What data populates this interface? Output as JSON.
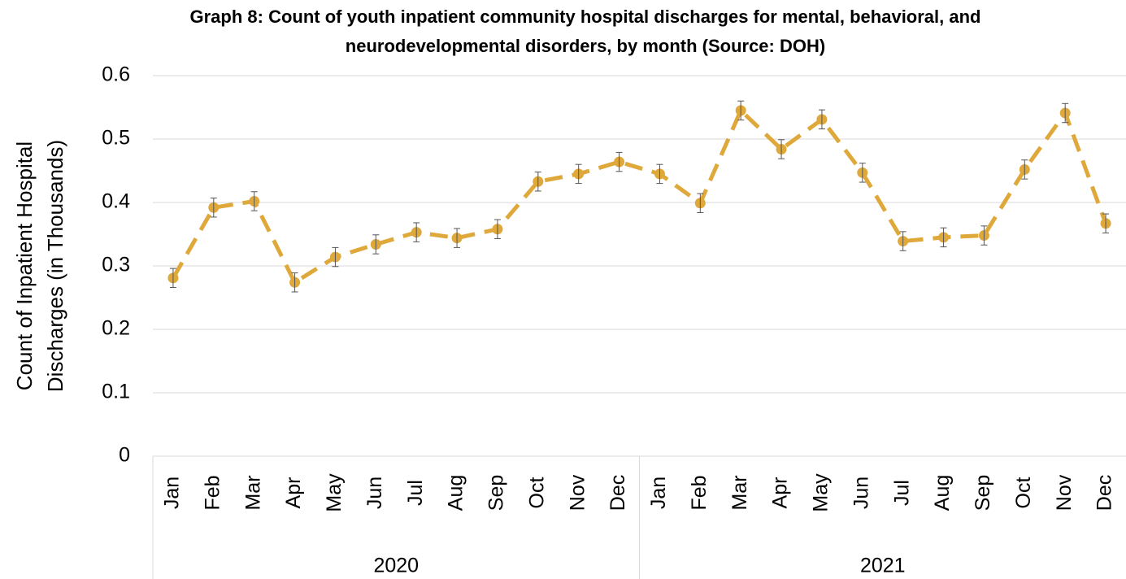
{
  "chart_data": {
    "type": "line",
    "title": [
      "Graph 8: Count of youth inpatient community hospital discharges for mental, behavioral, and",
      "neurodevelopmental disorders, by month (Source: DOH)"
    ],
    "y_label": [
      "Count of Inpatient Hospital",
      "Discharges (in Thousands)"
    ],
    "categories": [
      "Jan",
      "Feb",
      "Mar",
      "Apr",
      "May",
      "Jun",
      "Jul",
      "Aug",
      "Sep",
      "Oct",
      "Nov",
      "Dec",
      "Jan",
      "Feb",
      "Mar",
      "Apr",
      "May",
      "Jun",
      "Jul",
      "Aug",
      "Sep",
      "Oct",
      "Nov",
      "Dec"
    ],
    "category_groups": [
      "2020",
      "2021"
    ],
    "values": [
      0.281,
      0.392,
      0.402,
      0.274,
      0.314,
      0.334,
      0.353,
      0.344,
      0.358,
      0.433,
      0.445,
      0.464,
      0.445,
      0.399,
      0.545,
      0.484,
      0.531,
      0.447,
      0.339,
      0.345,
      0.348,
      0.452,
      0.541,
      0.367
    ],
    "errors": [
      0.015,
      0.015,
      0.015,
      0.015,
      0.015,
      0.015,
      0.015,
      0.015,
      0.015,
      0.015,
      0.015,
      0.015,
      0.015,
      0.015,
      0.015,
      0.015,
      0.015,
      0.015,
      0.015,
      0.015,
      0.015,
      0.015,
      0.015,
      0.015
    ],
    "color": "#dfa83a",
    "error_color": "#555555",
    "line_style": "dashed",
    "ylim": [
      0,
      0.6
    ],
    "yticks": [
      0,
      0.1,
      0.2,
      0.3,
      0.4,
      0.5,
      0.6
    ],
    "grid": true
  }
}
